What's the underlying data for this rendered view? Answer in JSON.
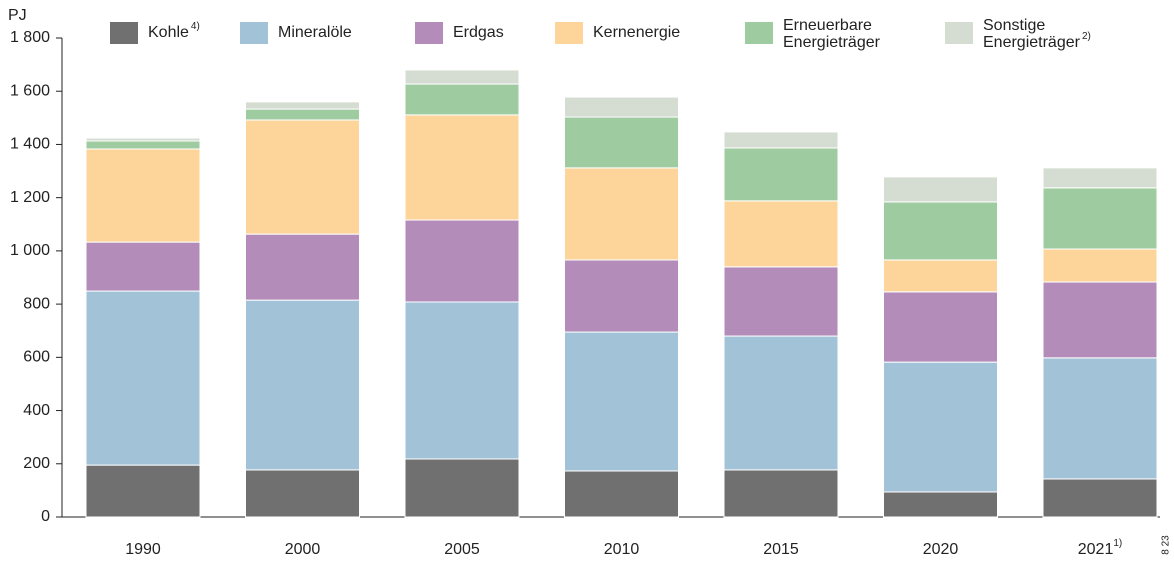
{
  "chart_data": {
    "type": "stacked_bar",
    "y_label": "PJ",
    "categories": [
      "1990",
      "2000",
      "2005",
      "2010",
      "2015",
      "2020",
      "2021"
    ],
    "x_footnotes": [
      null,
      null,
      null,
      null,
      null,
      null,
      "1)"
    ],
    "series": [
      {
        "name": "Kohle",
        "note": "4)",
        "color": "#707070",
        "values": [
          195,
          177,
          218,
          173,
          177,
          94,
          143
        ]
      },
      {
        "name": "Mineralöle",
        "color": "#a2c2d8",
        "values": [
          654,
          638,
          590,
          522,
          503,
          488,
          455
        ]
      },
      {
        "name": "Erdgas",
        "color": "#b38cba",
        "values": [
          184,
          248,
          308,
          271,
          260,
          264,
          285
        ]
      },
      {
        "name": "Kernenergie",
        "color": "#fdd49a",
        "values": [
          350,
          429,
          395,
          346,
          248,
          120,
          124
        ]
      },
      {
        "name": "Erneuerbare Energieträger",
        "color": "#9fcba0",
        "values": [
          30,
          41,
          116,
          191,
          199,
          218,
          230
        ]
      },
      {
        "name": "Sonstige Energieträger",
        "note": "2)",
        "color": "#d5dcd1",
        "values": [
          11,
          27,
          53,
          75,
          60,
          94,
          75
        ]
      }
    ],
    "ylim": [
      0,
      1800
    ],
    "yticks": [
      0,
      200,
      400,
      600,
      800,
      {
        "value": 1000,
        "label": "1 000"
      },
      {
        "value": 1200,
        "label": "1 200"
      },
      {
        "value": 1400,
        "label": "1 400"
      },
      {
        "value": 1600,
        "label": "1 600"
      },
      {
        "value": 1800,
        "label": "1 800"
      }
    ],
    "source_code": "8 23"
  }
}
